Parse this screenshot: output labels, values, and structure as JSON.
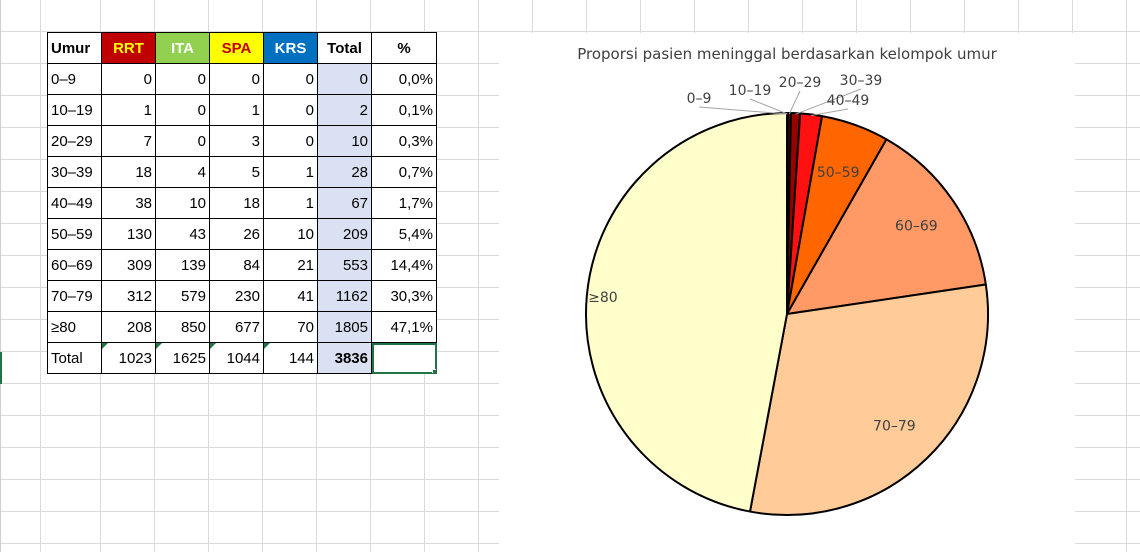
{
  "table": {
    "headers": [
      "Umur",
      "RRT",
      "ITA",
      "SPA",
      "KRS",
      "Total",
      "%"
    ],
    "rows": [
      [
        "0–9",
        "0",
        "0",
        "0",
        "0",
        "0",
        "0,0%"
      ],
      [
        "10–19",
        "1",
        "0",
        "1",
        "0",
        "2",
        "0,1%"
      ],
      [
        "20–29",
        "7",
        "0",
        "3",
        "0",
        "10",
        "0,3%"
      ],
      [
        "30–39",
        "18",
        "4",
        "5",
        "1",
        "28",
        "0,7%"
      ],
      [
        "40–49",
        "38",
        "10",
        "18",
        "1",
        "67",
        "1,7%"
      ],
      [
        "50–59",
        "130",
        "43",
        "26",
        "10",
        "209",
        "5,4%"
      ],
      [
        "60–69",
        "309",
        "139",
        "84",
        "21",
        "553",
        "14,4%"
      ],
      [
        "70–79",
        "312",
        "579",
        "230",
        "41",
        "1162",
        "30,3%"
      ],
      [
        "≥80",
        "208",
        "850",
        "677",
        "70",
        "1805",
        "47,1%"
      ]
    ],
    "total_row": [
      "Total",
      "1023",
      "1625",
      "1044",
      "144",
      "3836",
      ""
    ]
  },
  "chart_data": {
    "type": "pie",
    "title": "Proporsi pasien meninggal berdasarkan kelompok umur",
    "categories": [
      "0–9",
      "10–19",
      "20–29",
      "30–39",
      "40–49",
      "50–59",
      "60–69",
      "70–79",
      "≥80"
    ],
    "values": [
      0,
      2,
      10,
      28,
      67,
      209,
      553,
      1162,
      1805
    ],
    "colors": [
      "#ffffff",
      "#111111",
      "#5c0000",
      "#990000",
      "#ff1111",
      "#ff6600",
      "#ff9a66",
      "#ffcc99",
      "#ffffcc"
    ]
  }
}
